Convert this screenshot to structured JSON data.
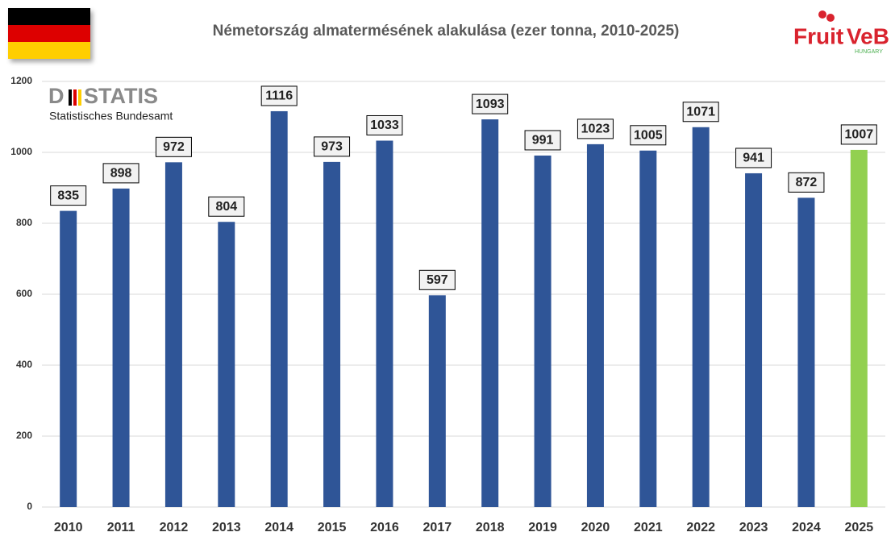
{
  "chart_data": {
    "type": "bar",
    "title": "Németország almatermésének alakulása (ezer tonna, 2010-2025)",
    "source_logo": [
      "D",
      "STATIS"
    ],
    "source_name": "Statistisches Bundesamt",
    "publisher_logo": [
      "Fruit",
      "VeB"
    ],
    "publisher_country": "HUNGARY",
    "categories": [
      "2010",
      "2011",
      "2012",
      "2013",
      "2014",
      "2015",
      "2016",
      "2017",
      "2018",
      "2019",
      "2020",
      "2021",
      "2022",
      "2023",
      "2024",
      "2025"
    ],
    "values": [
      835,
      898,
      972,
      804,
      1116,
      973,
      1033,
      597,
      1093,
      991,
      1023,
      1005,
      1071,
      941,
      872,
      1007
    ],
    "colors": [
      "#2f5597",
      "#2f5597",
      "#2f5597",
      "#2f5597",
      "#2f5597",
      "#2f5597",
      "#2f5597",
      "#2f5597",
      "#2f5597",
      "#2f5597",
      "#2f5597",
      "#2f5597",
      "#2f5597",
      "#2f5597",
      "#2f5597",
      "#92d050"
    ],
    "ylim": [
      0,
      1200
    ],
    "yticks": [
      0,
      200,
      400,
      600,
      800,
      1000,
      1200
    ],
    "grid": true
  }
}
